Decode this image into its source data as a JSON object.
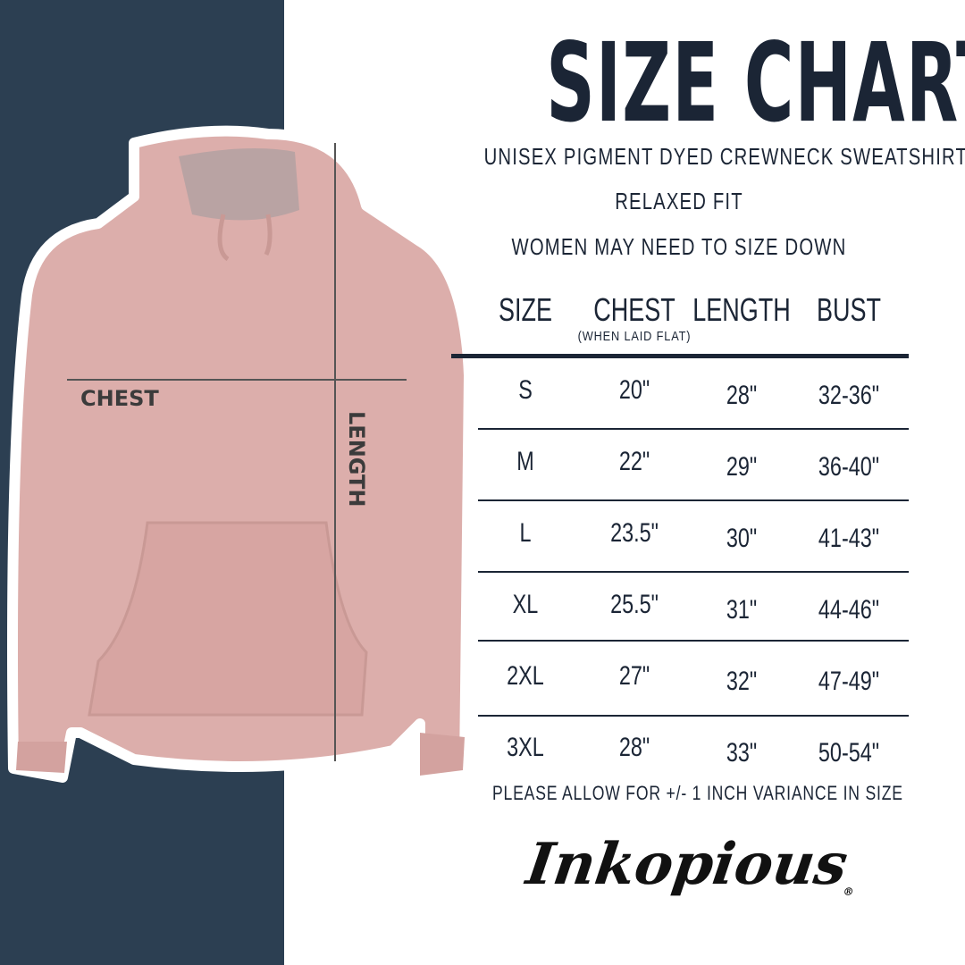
{
  "colors": {
    "navy": "#2c3f52",
    "ink": "#1b2535",
    "hoodie": "#dcaeab",
    "hoodie_shadow": "#c99995"
  },
  "title": "SIZE CHART",
  "subtitles": [
    "UNISEX PIGMENT DYED CREWNECK SWEATSHIRT",
    "RELAXED FIT",
    "WOMEN MAY NEED TO SIZE DOWN"
  ],
  "table": {
    "headers": [
      "SIZE",
      "CHEST",
      "LENGTH",
      "BUST"
    ],
    "chest_note": "(WHEN LAID FLAT)",
    "rows": [
      [
        "S",
        "20\"",
        "28\"",
        "32-36\""
      ],
      [
        "M",
        "22\"",
        "29\"",
        "36-40\""
      ],
      [
        "L",
        "23.5\"",
        "30\"",
        "41-43\""
      ],
      [
        "XL",
        "25.5\"",
        "31\"",
        "44-46\""
      ],
      [
        "2XL",
        "27\"",
        "32\"",
        "47-49\""
      ],
      [
        "3XL",
        "28\"",
        "33\"",
        "50-54\""
      ]
    ]
  },
  "variance_note": "PLEASE ALLOW FOR +/- 1 INCH VARIANCE IN SIZE",
  "diagram": {
    "chest_label": "CHEST",
    "length_label": "LENGTH"
  },
  "logo": "Inkopious"
}
